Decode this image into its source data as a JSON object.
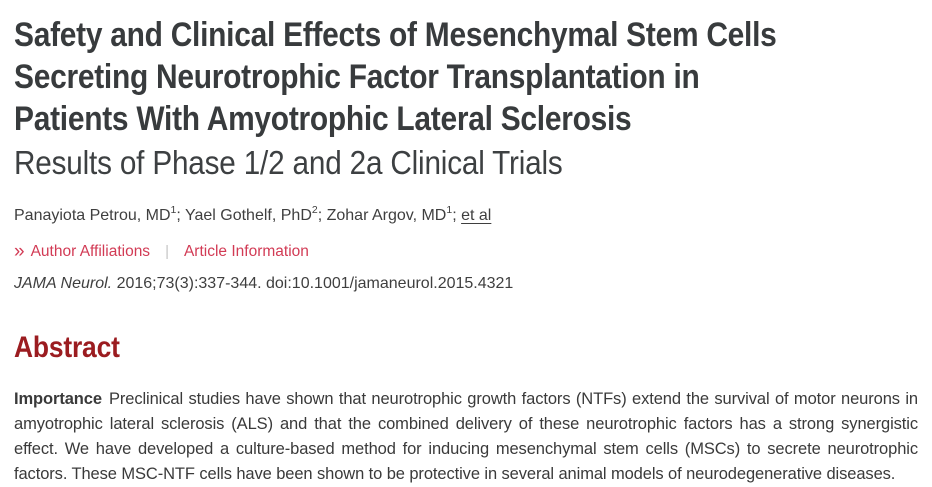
{
  "page": {
    "title_lines": [
      "Safety and Clinical Effects of Mesenchymal Stem Cells",
      "Secreting Neurotrophic Factor Transplantation in",
      "Patients With Amyotrophic Lateral Sclerosis"
    ],
    "subtitle": "Results of Phase 1/2 and 2a Clinical Trials",
    "byline": {
      "authors": [
        {
          "name": "Panayiota Petrou, MD",
          "sup": "1"
        },
        {
          "name": "Yael Gothelf, PhD",
          "sup": "2"
        },
        {
          "name": "Zohar Argov, MD",
          "sup": "1"
        }
      ],
      "separator": "; ",
      "et_al": "et al"
    },
    "meta_links": {
      "chevron_glyph": "»",
      "author_affiliations": "Author Affiliations",
      "divider": "|",
      "article_information": "Article Information"
    },
    "citation": {
      "journal_italic": "JAMA Neurol.",
      "detail": "2016;73(3):337-344. doi:10.1001/jamaneurol.2015.4321"
    },
    "abstract": {
      "heading": "Abstract",
      "importance_label": "Importance",
      "importance_text": "Preclinical studies have shown that neurotrophic growth factors (NTFs) extend the survival of motor neurons in amyotrophic lateral sclerosis (ALS) and that the combined delivery of these neurotrophic factors has a strong synergistic effect. We have developed a culture-based method for inducing mesenchymal stem cells (MSCs) to secrete neurotrophic factors. These MSC-NTF cells have been shown to be protective in several animal models of neurodegenerative diseases."
    },
    "colors": {
      "accent_red": "#d23b55",
      "heading_maroon": "#9b1c20",
      "text_dark": "#3a3a3a",
      "divider_gray": "#c4c4c4"
    }
  }
}
